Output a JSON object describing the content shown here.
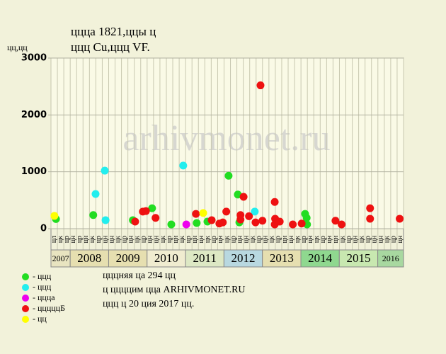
{
  "chart_data": {
    "type": "scatter",
    "title": "ццца 1821,ццы ц",
    "subtitle": "ццц Cu,ццц VF.",
    "y_label": "цц,цц",
    "watermark": "arhivmonet.ru",
    "notes": [
      "цццняя ца 294 цц",
      "ц ццццим цца ARHIVMONET.RU",
      "ццц ц 20 ция 2017 цц."
    ],
    "xlim": [
      2007.5,
      2016.67
    ],
    "ylim": [
      0,
      3000
    ],
    "yticks": [
      0,
      1000,
      2000,
      3000
    ],
    "columns": [
      "цл",
      "цк",
      "цр",
      "цн",
      "цр",
      "цн",
      "цк",
      "цр",
      "цн",
      "цн",
      "цк",
      "цр",
      "цн",
      "цк",
      "цр",
      "цн",
      "цн",
      "цк",
      "цр",
      "цн",
      "цк",
      "цр",
      "цн",
      "цн",
      "цк",
      "цр",
      "цн",
      "цк",
      "цр",
      "цн",
      "цн",
      "цк",
      "цр",
      "цн",
      "цк",
      "цр",
      "цн",
      "цн",
      "цк",
      "цр",
      "цн",
      "цк",
      "цр",
      "цн",
      "цн",
      "цк",
      "цр",
      "цн",
      "цк",
      "цр",
      "цн",
      "цн",
      "цк",
      "цр",
      "цн"
    ],
    "years": [
      {
        "label": "2007",
        "start": 2007.5,
        "end": 2008,
        "color": "#e8e4c0"
      },
      {
        "label": "2008",
        "start": 2008,
        "end": 2009,
        "color": "#e6dfb0"
      },
      {
        "label": "2009",
        "start": 2009,
        "end": 2010,
        "color": "#e6dfb0"
      },
      {
        "label": "2010",
        "start": 2010,
        "end": 2011,
        "color": "#f0ecd0"
      },
      {
        "label": "2011",
        "start": 2011,
        "end": 2012,
        "color": "#dde8c4"
      },
      {
        "label": "2012",
        "start": 2012,
        "end": 2013,
        "color": "#b8d8e0"
      },
      {
        "label": "2013",
        "start": 2013,
        "end": 2014,
        "color": "#e6dfb0"
      },
      {
        "label": "2014",
        "start": 2014,
        "end": 2015,
        "color": "#8fd88f"
      },
      {
        "label": "2015",
        "start": 2015,
        "end": 2016,
        "color": "#c8e8b0"
      },
      {
        "label": "2016",
        "start": 2016,
        "end": 2016.67,
        "color": "#a8d8a0"
      }
    ],
    "series": [
      {
        "name": "- ццц",
        "color": "#22dd22",
        "x": [
          2007.63,
          2008.6,
          2009.63,
          2010.13,
          2010.63,
          2011.29,
          2011.57,
          2012.12,
          2012.36,
          2012.4,
          2014.11,
          2014.15,
          2014.16
        ],
        "values": [
          170,
          240,
          150,
          360,
          75,
          100,
          125,
          930,
          600,
          110,
          260,
          190,
          75
        ]
      },
      {
        "name": "- ццц",
        "color": "#22eeee",
        "x": [
          2008.66,
          2008.9,
          2008.92,
          2010.94,
          2012.8
        ],
        "values": [
          610,
          1020,
          150,
          1110,
          300
        ]
      },
      {
        "name": "- ццца",
        "color": "#ee00ee",
        "x": [
          2011.02
        ],
        "values": [
          75
        ]
      },
      {
        "name": "- цццццБ",
        "color": "#ee1111",
        "x": [
          2009.69,
          2009.89,
          2009.97,
          2010.22,
          2011.27,
          2011.68,
          2011.88,
          2011.97,
          2012.06,
          2012.43,
          2012.43,
          2012.51,
          2012.65,
          2012.82,
          2012.95,
          2013.0,
          2013.32,
          2013.33,
          2013.32,
          2013.45,
          2013.79,
          2014.02,
          2014.9,
          2015.06,
          2015.8,
          2015.8,
          2016.57
        ],
        "values": [
          125,
          300,
          310,
          190,
          260,
          150,
          90,
          110,
          300,
          240,
          160,
          560,
          220,
          110,
          2520,
          140,
          470,
          175,
          75,
          125,
          75,
          90,
          140,
          75,
          360,
          175,
          175
        ]
      },
      {
        "name": "- цц",
        "color": "#ffff00",
        "x": [
          2007.59,
          2011.46
        ],
        "values": [
          225,
          275
        ]
      }
    ]
  }
}
